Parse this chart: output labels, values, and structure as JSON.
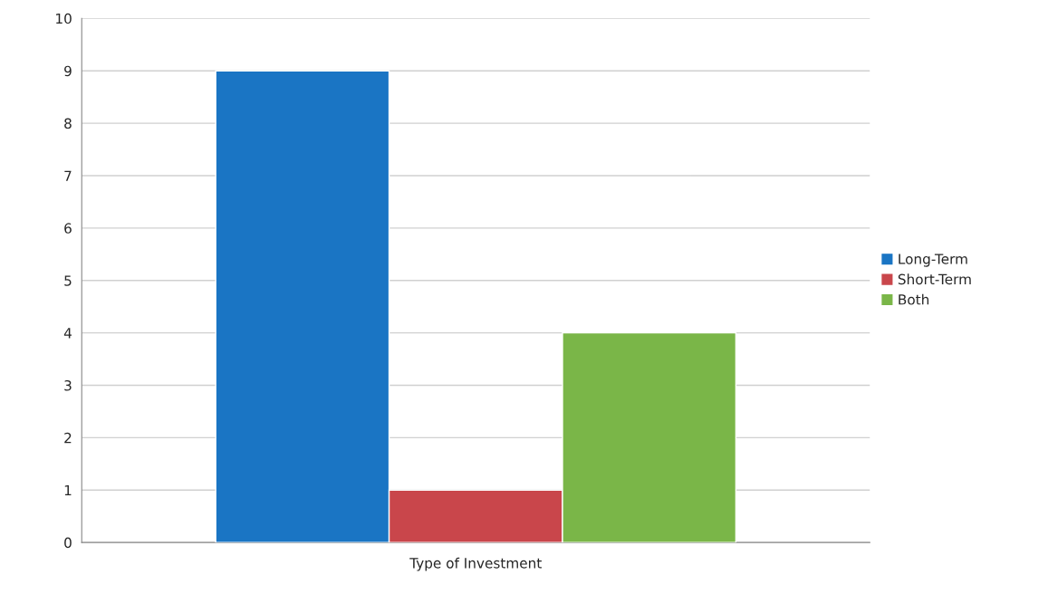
{
  "chart_data": {
    "type": "bar",
    "categories": [
      "Type of Investment"
    ],
    "series": [
      {
        "name": "Long-Term",
        "color": "#1a75c4",
        "values": [
          9
        ]
      },
      {
        "name": "Short-Term",
        "color": "#c9464b",
        "values": [
          1
        ]
      },
      {
        "name": "Both",
        "color": "#7ab648",
        "values": [
          4
        ]
      }
    ],
    "ylim": [
      0,
      10
    ],
    "yticks": [
      0,
      1,
      2,
      3,
      4,
      5,
      6,
      7,
      8,
      9,
      10
    ],
    "grid": "y",
    "legend": "right"
  }
}
